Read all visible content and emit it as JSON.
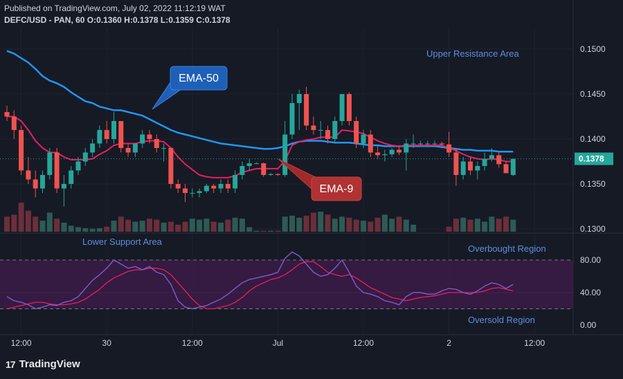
{
  "header": {
    "published": "Published on TradingView.com, July 02, 2022 11:12:19 WAT",
    "ohlc_line": "DEFC/USD - PAN, 60  O:0.1360  H:0.1378  L:0.1359  C:0.1378"
  },
  "brand": {
    "name": "TradingView",
    "logo_text": "17"
  },
  "colors": {
    "background": "#161a25",
    "up": "#26a69a",
    "down": "#ef5350",
    "ema50": "#2196f3",
    "ema9": "#e91e63",
    "rsi": "#7e57c2",
    "rsi_ma": "#e91e63",
    "rsi_band": "#3b1b47"
  },
  "chart_data": [
    {
      "type": "candlestick",
      "title": "DEFC/USD - PAN, 60",
      "price_axis": {
        "ticks": [
          "0.1500",
          "0.1450",
          "0.1400",
          "0.1350",
          "0.1300"
        ],
        "ylim": [
          0.13,
          0.15
        ]
      },
      "last_price_label": "0.1378",
      "last_price": 0.1378,
      "x_axis": {
        "ticks": [
          {
            "label": "12:00",
            "i": 2
          },
          {
            "label": "30",
            "i": 14
          },
          {
            "label": "12:00",
            "i": 26
          },
          {
            "label": "Jul",
            "i": 38
          },
          {
            "label": "12:00",
            "i": 50
          },
          {
            "label": "2",
            "i": 62
          },
          {
            "label": "12:00",
            "i": 74
          }
        ]
      },
      "candles": [
        {
          "o": 0.143,
          "h": 0.1437,
          "l": 0.142,
          "c": 0.1425
        },
        {
          "o": 0.1425,
          "h": 0.1432,
          "l": 0.14,
          "c": 0.141
        },
        {
          "o": 0.141,
          "h": 0.1415,
          "l": 0.136,
          "c": 0.1365
        },
        {
          "o": 0.1365,
          "h": 0.138,
          "l": 0.135,
          "c": 0.1355
        },
        {
          "o": 0.1355,
          "h": 0.1365,
          "l": 0.1335,
          "c": 0.1345
        },
        {
          "o": 0.1345,
          "h": 0.1365,
          "l": 0.134,
          "c": 0.136
        },
        {
          "o": 0.136,
          "h": 0.139,
          "l": 0.1355,
          "c": 0.1385
        },
        {
          "o": 0.1385,
          "h": 0.139,
          "l": 0.134,
          "c": 0.1345
        },
        {
          "o": 0.1345,
          "h": 0.136,
          "l": 0.1325,
          "c": 0.135
        },
        {
          "o": 0.135,
          "h": 0.137,
          "l": 0.1345,
          "c": 0.1365
        },
        {
          "o": 0.1365,
          "h": 0.138,
          "l": 0.136,
          "c": 0.1375
        },
        {
          "o": 0.1375,
          "h": 0.139,
          "l": 0.137,
          "c": 0.1385
        },
        {
          "o": 0.1385,
          "h": 0.14,
          "l": 0.138,
          "c": 0.1395
        },
        {
          "o": 0.1395,
          "h": 0.1415,
          "l": 0.139,
          "c": 0.141
        },
        {
          "o": 0.141,
          "h": 0.142,
          "l": 0.1395,
          "c": 0.14
        },
        {
          "o": 0.14,
          "h": 0.143,
          "l": 0.1395,
          "c": 0.142
        },
        {
          "o": 0.142,
          "h": 0.142,
          "l": 0.1385,
          "c": 0.139
        },
        {
          "o": 0.139,
          "h": 0.1395,
          "l": 0.138,
          "c": 0.1385
        },
        {
          "o": 0.1385,
          "h": 0.1395,
          "l": 0.138,
          "c": 0.1395
        },
        {
          "o": 0.1395,
          "h": 0.141,
          "l": 0.139,
          "c": 0.1405
        },
        {
          "o": 0.1405,
          "h": 0.141,
          "l": 0.1395,
          "c": 0.14
        },
        {
          "o": 0.14,
          "h": 0.1405,
          "l": 0.1385,
          "c": 0.139
        },
        {
          "o": 0.139,
          "h": 0.1395,
          "l": 0.1375,
          "c": 0.139
        },
        {
          "o": 0.139,
          "h": 0.139,
          "l": 0.1345,
          "c": 0.135
        },
        {
          "o": 0.135,
          "h": 0.1355,
          "l": 0.134,
          "c": 0.1345
        },
        {
          "o": 0.1345,
          "h": 0.135,
          "l": 0.133,
          "c": 0.134
        },
        {
          "o": 0.134,
          "h": 0.1345,
          "l": 0.1335,
          "c": 0.134
        },
        {
          "o": 0.134,
          "h": 0.1345,
          "l": 0.1335,
          "c": 0.1342
        },
        {
          "o": 0.1342,
          "h": 0.135,
          "l": 0.134,
          "c": 0.1348
        },
        {
          "o": 0.1348,
          "h": 0.135,
          "l": 0.134,
          "c": 0.1345
        },
        {
          "o": 0.1345,
          "h": 0.1355,
          "l": 0.134,
          "c": 0.135
        },
        {
          "o": 0.135,
          "h": 0.1355,
          "l": 0.134,
          "c": 0.1345
        },
        {
          "o": 0.1345,
          "h": 0.1365,
          "l": 0.134,
          "c": 0.136
        },
        {
          "o": 0.136,
          "h": 0.1375,
          "l": 0.1355,
          "c": 0.137
        },
        {
          "o": 0.137,
          "h": 0.1378,
          "l": 0.1365,
          "c": 0.1373
        },
        {
          "o": 0.1373,
          "h": 0.1374,
          "l": 0.1372,
          "c": 0.1373
        },
        {
          "o": 0.1373,
          "h": 0.1374,
          "l": 0.1358,
          "c": 0.136
        },
        {
          "o": 0.136,
          "h": 0.1362,
          "l": 0.1359,
          "c": 0.1361
        },
        {
          "o": 0.1361,
          "h": 0.1362,
          "l": 0.1359,
          "c": 0.136
        },
        {
          "o": 0.136,
          "h": 0.142,
          "l": 0.1358,
          "c": 0.1405
        },
        {
          "o": 0.1405,
          "h": 0.145,
          "l": 0.14,
          "c": 0.144
        },
        {
          "o": 0.144,
          "h": 0.1455,
          "l": 0.141,
          "c": 0.145
        },
        {
          "o": 0.145,
          "h": 0.1458,
          "l": 0.141,
          "c": 0.1415
        },
        {
          "o": 0.1415,
          "h": 0.1425,
          "l": 0.1405,
          "c": 0.141
        },
        {
          "o": 0.141,
          "h": 0.142,
          "l": 0.14,
          "c": 0.141
        },
        {
          "o": 0.141,
          "h": 0.1415,
          "l": 0.1395,
          "c": 0.14
        },
        {
          "o": 0.14,
          "h": 0.1425,
          "l": 0.1395,
          "c": 0.142
        },
        {
          "o": 0.142,
          "h": 0.145,
          "l": 0.1415,
          "c": 0.145
        },
        {
          "o": 0.145,
          "h": 0.1452,
          "l": 0.1415,
          "c": 0.142
        },
        {
          "o": 0.142,
          "h": 0.1425,
          "l": 0.139,
          "c": 0.1395
        },
        {
          "o": 0.1395,
          "h": 0.141,
          "l": 0.139,
          "c": 0.1405
        },
        {
          "o": 0.1405,
          "h": 0.141,
          "l": 0.138,
          "c": 0.1385
        },
        {
          "o": 0.1385,
          "h": 0.1392,
          "l": 0.1378,
          "c": 0.1382
        },
        {
          "o": 0.1382,
          "h": 0.1388,
          "l": 0.1375,
          "c": 0.1383
        },
        {
          "o": 0.1383,
          "h": 0.139,
          "l": 0.138,
          "c": 0.1388
        },
        {
          "o": 0.1388,
          "h": 0.1392,
          "l": 0.1382,
          "c": 0.1385
        },
        {
          "o": 0.1385,
          "h": 0.14,
          "l": 0.1365,
          "c": 0.1395
        },
        {
          "o": 0.1395,
          "h": 0.1405,
          "l": 0.139,
          "c": 0.1395
        },
        {
          "o": 0.1395,
          "h": 0.1398,
          "l": 0.1393,
          "c": 0.1395
        },
        {
          "o": 0.1395,
          "h": 0.1398,
          "l": 0.1393,
          "c": 0.1395
        },
        {
          "o": 0.1395,
          "h": 0.1398,
          "l": 0.1393,
          "c": 0.1395
        },
        {
          "o": 0.1395,
          "h": 0.1397,
          "l": 0.1393,
          "c": 0.1394
        },
        {
          "o": 0.1394,
          "h": 0.1408,
          "l": 0.138,
          "c": 0.1385
        },
        {
          "o": 0.1385,
          "h": 0.139,
          "l": 0.1348,
          "c": 0.136
        },
        {
          "o": 0.136,
          "h": 0.138,
          "l": 0.1355,
          "c": 0.1375
        },
        {
          "o": 0.1375,
          "h": 0.138,
          "l": 0.136,
          "c": 0.1365
        },
        {
          "o": 0.1365,
          "h": 0.1375,
          "l": 0.1355,
          "c": 0.137
        },
        {
          "o": 0.137,
          "h": 0.1385,
          "l": 0.1365,
          "c": 0.1378
        },
        {
          "o": 0.1378,
          "h": 0.139,
          "l": 0.1375,
          "c": 0.1382
        },
        {
          "o": 0.1382,
          "h": 0.1385,
          "l": 0.1368,
          "c": 0.1372
        },
        {
          "o": 0.1372,
          "h": 0.1375,
          "l": 0.1362,
          "c": 0.1362
        },
        {
          "o": 0.136,
          "h": 0.1378,
          "l": 0.1359,
          "c": 0.1378
        }
      ],
      "volumes": [
        30,
        34,
        58,
        42,
        30,
        22,
        38,
        26,
        18,
        12,
        9,
        7,
        6,
        7,
        10,
        22,
        30,
        24,
        20,
        22,
        26,
        24,
        18,
        20,
        14,
        20,
        26,
        24,
        26,
        20,
        18,
        24,
        28,
        26,
        9,
        2,
        2,
        2,
        2,
        30,
        32,
        28,
        32,
        38,
        40,
        34,
        26,
        30,
        28,
        24,
        22,
        20,
        28,
        34,
        26,
        30,
        24,
        14,
        0,
        0,
        0,
        0,
        10,
        26,
        28,
        24,
        26,
        20,
        30,
        26,
        30,
        24
      ],
      "ema50": [
        0.1498,
        0.1495,
        0.149,
        0.1485,
        0.1478,
        0.147,
        0.1465,
        0.1462,
        0.1458,
        0.1452,
        0.1447,
        0.1442,
        0.144,
        0.1436,
        0.1434,
        0.1432,
        0.1432,
        0.143,
        0.1428,
        0.1426,
        0.1422,
        0.1418,
        0.1414,
        0.141,
        0.1407,
        0.1405,
        0.1403,
        0.1401,
        0.1399,
        0.1397,
        0.1395,
        0.1394,
        0.1393,
        0.1392,
        0.1391,
        0.139,
        0.1389,
        0.1389,
        0.139,
        0.1392,
        0.1395,
        0.1397,
        0.1398,
        0.1398,
        0.1398,
        0.1397,
        0.1396,
        0.1396,
        0.1396,
        0.1395,
        0.1394,
        0.1393,
        0.1393,
        0.1392,
        0.1392,
        0.1392,
        0.1392,
        0.1392,
        0.1392,
        0.1392,
        0.1392,
        0.1391,
        0.139,
        0.1389,
        0.1388,
        0.1388,
        0.1387,
        0.1387,
        0.1387,
        0.1386,
        0.1386,
        0.1386
      ],
      "ema9": [
        0.1425,
        0.1425,
        0.142,
        0.141,
        0.1398,
        0.139,
        0.1385,
        0.1385,
        0.138,
        0.1377,
        0.1377,
        0.1377,
        0.1378,
        0.1383,
        0.1387,
        0.1393,
        0.1395,
        0.1395,
        0.1395,
        0.1397,
        0.1398,
        0.1398,
        0.1397,
        0.139,
        0.138,
        0.1372,
        0.1366,
        0.136,
        0.1358,
        0.1357,
        0.1357,
        0.1357,
        0.1359,
        0.1363,
        0.1365,
        0.1367,
        0.1367,
        0.1367,
        0.1367,
        0.1376,
        0.1393,
        0.1397,
        0.1399,
        0.14,
        0.1402,
        0.1402,
        0.1402,
        0.141,
        0.1409,
        0.1408,
        0.1406,
        0.1402,
        0.1398,
        0.1395,
        0.1393,
        0.1392,
        0.1393,
        0.1393,
        0.1393,
        0.1393,
        0.1393,
        0.1393,
        0.139,
        0.1387,
        0.1383,
        0.138,
        0.1378,
        0.1377,
        0.1378,
        0.1377,
        0.1375,
        0.1375
      ]
    },
    {
      "type": "line",
      "title": "RSI",
      "y_axis": {
        "ticks": [
          "80.00",
          "40.00",
          "0.00"
        ],
        "ylim": [
          -10,
          100
        ]
      },
      "bands": {
        "upper": 80,
        "lower": 20
      },
      "rsi": [
        35,
        30,
        28,
        25,
        20,
        22,
        25,
        24,
        28,
        30,
        35,
        45,
        55,
        62,
        70,
        80,
        75,
        70,
        72,
        68,
        72,
        65,
        62,
        50,
        30,
        22,
        20,
        22,
        24,
        28,
        32,
        38,
        45,
        52,
        56,
        58,
        60,
        62,
        65,
        82,
        90,
        85,
        75,
        65,
        60,
        62,
        70,
        80,
        65,
        48,
        40,
        38,
        35,
        30,
        28,
        25,
        35,
        40,
        40,
        38,
        38,
        42,
        45,
        44,
        40,
        38,
        42,
        48,
        52,
        50,
        45,
        50
      ],
      "rsi_ma": [
        20,
        22,
        24,
        26,
        28,
        28,
        26,
        25,
        25,
        26,
        28,
        32,
        38,
        44,
        52,
        58,
        62,
        66,
        68,
        68,
        70,
        70,
        68,
        62,
        52,
        42,
        32,
        24,
        20,
        20,
        22,
        24,
        28,
        34,
        42,
        48,
        52,
        56,
        58,
        62,
        68,
        75,
        78,
        78,
        72,
        65,
        62,
        60,
        62,
        58,
        52,
        46,
        42,
        38,
        34,
        32,
        30,
        32,
        34,
        35,
        36,
        38,
        40,
        40,
        40,
        40,
        40,
        42,
        45,
        46,
        44,
        42
      ]
    }
  ],
  "annotations": {
    "upper_resistance": "Upper Resistance Area",
    "lower_support": "Lower Support Area",
    "overbought": "Overbought Region",
    "oversold": "Oversold Region",
    "ema50_label": "EMA-50",
    "ema9_label": "EMA-9"
  }
}
